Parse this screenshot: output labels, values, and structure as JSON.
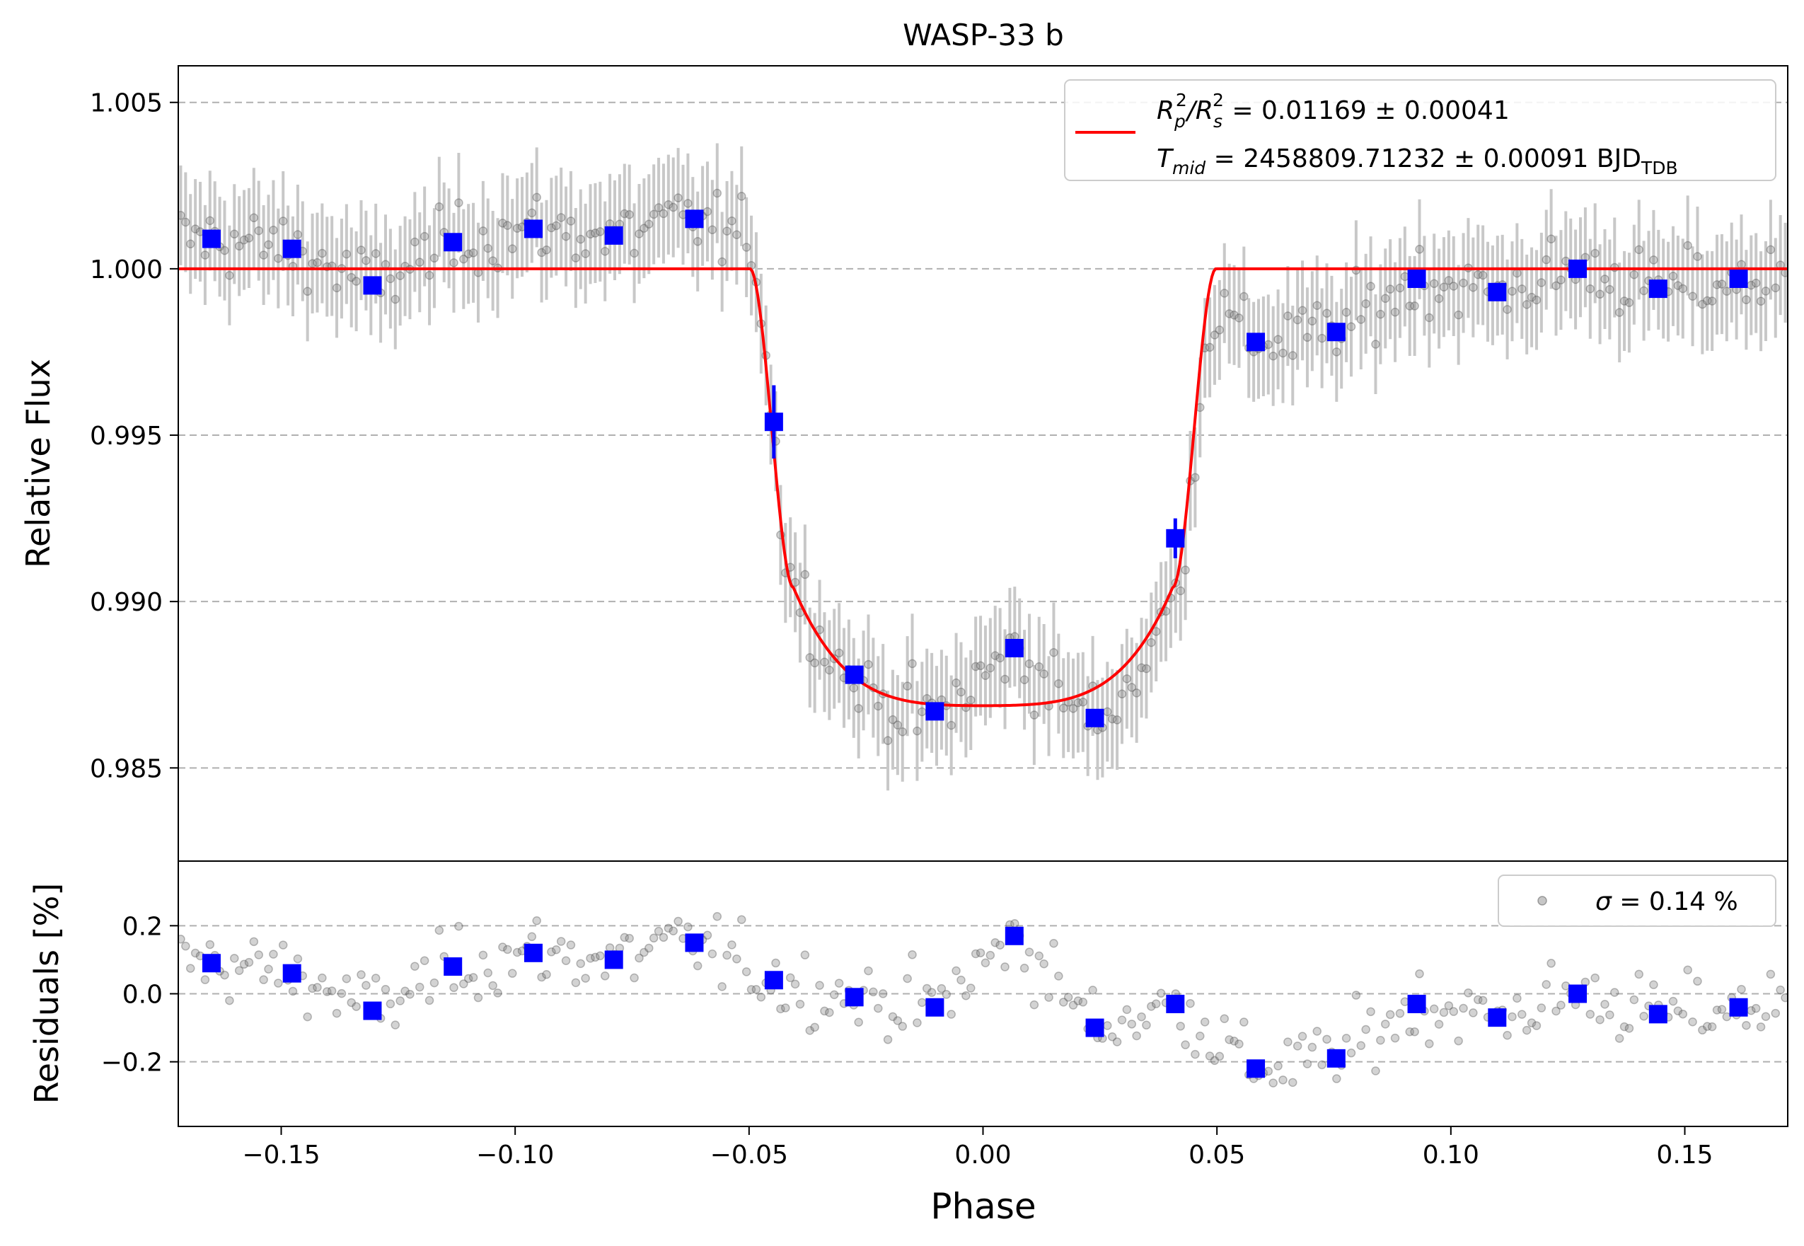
{
  "chart_data": [
    {
      "type": "scatter",
      "panel": "light-curve",
      "title": "WASP-33 b",
      "ylabel": "Relative Flux",
      "xlim": [
        -0.172,
        0.172
      ],
      "ylim": [
        0.9822,
        1.0061
      ],
      "yticks": [
        0.985,
        0.99,
        0.995,
        1.0,
        1.005
      ],
      "ytick_labels": [
        "0.985",
        "0.990",
        "0.995",
        "1.000",
        "1.005"
      ],
      "grid": "horizontal dashed",
      "legend": {
        "placement": "top-right",
        "line1_prefix": "R",
        "line1_sub1": "p",
        "line1_sup1": "2",
        "line1_slash": "/R",
        "line1_sub2": "s",
        "line1_sup2": "2",
        "line1_value": " = 0.01169 ± 0.00041",
        "line2_prefix": "T",
        "line2_sub": "mid",
        "line2_value": " = 2458809.71232 ± 0.00091 BJD",
        "line2_unit_sub": "TDB"
      },
      "model": {
        "name": "transit model",
        "color": "#ff0000",
        "depth": 0.01313,
        "t14_half": 0.0498,
        "t23_half": 0.0405
      },
      "binned": {
        "color": "#0000ff",
        "x": [
          -0.1649,
          -0.1477,
          -0.1305,
          -0.1133,
          -0.0961,
          -0.0789,
          -0.0617,
          -0.0447,
          -0.0275,
          -0.0103,
          0.0067,
          0.0239,
          0.0411,
          0.0583,
          0.0755,
          0.0927,
          0.1099,
          0.1271,
          0.1443,
          0.1615
        ],
        "y": [
          1.0009,
          1.0006,
          0.9995,
          1.0008,
          1.0012,
          1.001,
          1.0015,
          0.9954,
          0.9878,
          0.9867,
          0.9886,
          0.9865,
          0.9919,
          0.9978,
          0.9981,
          0.9997,
          0.9993,
          1.0,
          0.9994,
          0.9997
        ],
        "yerr": [
          0.00015,
          0.00015,
          0.00015,
          0.00015,
          0.00015,
          0.00015,
          0.00015,
          0.0011,
          0.00015,
          0.00015,
          0.00015,
          0.00015,
          0.0006,
          0.00015,
          0.00015,
          0.00015,
          0.00015,
          0.00015,
          0.00015,
          0.00015
        ]
      },
      "raw": {
        "color": "#808080",
        "count": 330,
        "noise_sigma": 0.0008,
        "error_bar": 0.0015
      }
    },
    {
      "type": "scatter",
      "panel": "residuals",
      "xlabel": "Phase",
      "ylabel": "Residuals [%]",
      "xlim": [
        -0.172,
        0.172
      ],
      "ylim": [
        -0.39,
        0.39
      ],
      "xticks": [
        -0.15,
        -0.1,
        -0.05,
        0.0,
        0.05,
        0.1,
        0.15
      ],
      "xtick_labels": [
        "−0.15",
        "−0.10",
        "−0.05",
        "0.00",
        "0.05",
        "0.10",
        "0.15"
      ],
      "yticks": [
        -0.2,
        0.0,
        0.2
      ],
      "ytick_labels": [
        "−0.2",
        "0.0",
        "0.2"
      ],
      "grid": "horizontal dashed",
      "legend": {
        "placement": "top-right",
        "label_prefix": "σ",
        "label_value": " = 0.14 %"
      },
      "binned": {
        "color": "#0000ff",
        "x": [
          -0.1649,
          -0.1477,
          -0.1305,
          -0.1133,
          -0.0961,
          -0.0789,
          -0.0617,
          -0.0447,
          -0.0275,
          -0.0103,
          0.0067,
          0.0239,
          0.0411,
          0.0583,
          0.0755,
          0.0927,
          0.1099,
          0.1271,
          0.1443,
          0.1615
        ],
        "y": [
          0.09,
          0.06,
          -0.05,
          0.08,
          0.12,
          0.1,
          0.15,
          0.04,
          -0.01,
          -0.04,
          0.17,
          -0.1,
          -0.03,
          -0.22,
          -0.19,
          -0.03,
          -0.07,
          0.0,
          -0.06,
          -0.04
        ]
      }
    }
  ]
}
